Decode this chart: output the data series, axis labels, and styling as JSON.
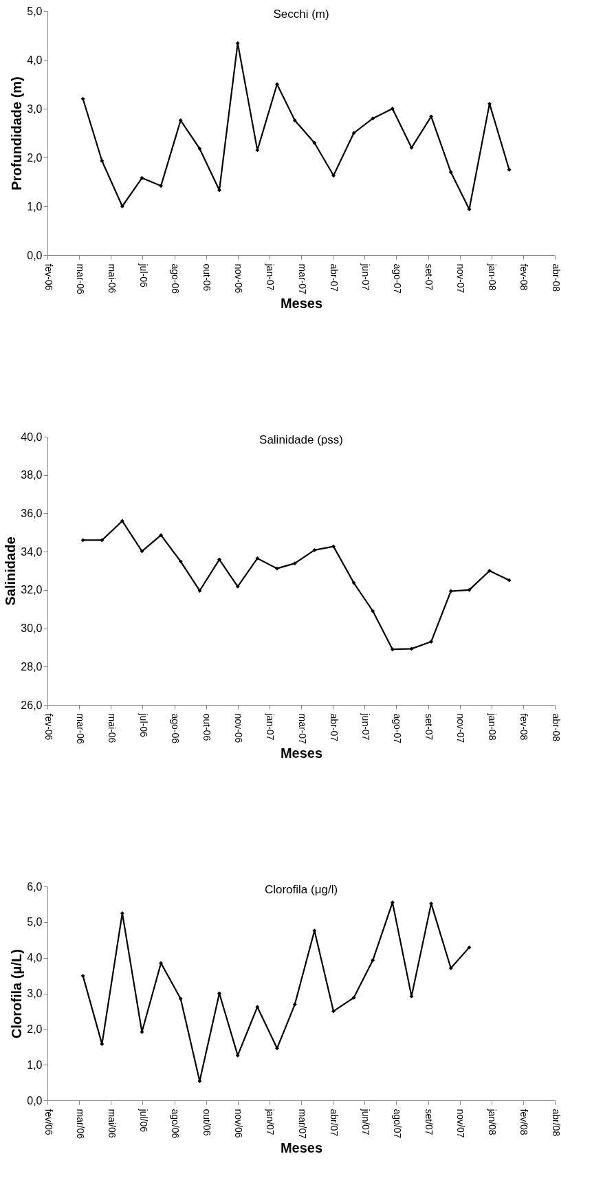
{
  "chart_data": [
    {
      "type": "line",
      "title": "Secchi (m)",
      "xlabel": "Meses",
      "ylabel": "Profundidade (m)",
      "marker": "diamond",
      "line_style": "solid",
      "grid": false,
      "x": [
        "2006-03-29",
        "2006-04-28",
        "2006-05-30",
        "2006-06-30",
        "2006-07-30",
        "2006-08-30",
        "2006-09-29",
        "2006-10-30",
        "2006-11-28",
        "2006-12-29",
        "2007-01-29",
        "2007-02-26",
        "2007-03-29",
        "2007-04-28",
        "2007-05-30",
        "2007-06-29",
        "2007-07-30",
        "2007-08-29",
        "2007-09-29",
        "2007-10-30",
        "2007-11-28",
        "2007-12-30",
        "2008-01-30"
      ],
      "series": [
        {
          "color": "#000000",
          "values": [
            3.2,
            1.93,
            1.0,
            1.58,
            1.42,
            2.76,
            2.18,
            1.33,
            4.34,
            2.15,
            3.5,
            2.76,
            2.3,
            1.63,
            2.5,
            2.8,
            3.0,
            2.2,
            2.84,
            1.7,
            0.94,
            3.1,
            1.75
          ]
        }
      ],
      "ylim": [
        0,
        5
      ],
      "yticks": [
        {
          "value": 0,
          "label": "0,0"
        },
        {
          "value": 1,
          "label": "1,0"
        },
        {
          "value": 2,
          "label": "2,0"
        },
        {
          "value": 3,
          "label": "3,0"
        },
        {
          "value": 4,
          "label": "4,0"
        },
        {
          "value": 5,
          "label": "5,0"
        }
      ],
      "xlim": [
        "2006-02-01",
        "2008-04-11"
      ],
      "xticks": [
        {
          "value": "2006-02-01",
          "label": "fev-06"
        },
        {
          "value": "2006-03-23",
          "label": "mar-06"
        },
        {
          "value": "2006-05-12",
          "label": "mai-06"
        },
        {
          "value": "2006-07-01",
          "label": "jul-06"
        },
        {
          "value": "2006-08-20",
          "label": "ago-06"
        },
        {
          "value": "2006-10-09",
          "label": "out-06"
        },
        {
          "value": "2006-11-28",
          "label": "nov-06"
        },
        {
          "value": "2007-01-17",
          "label": "jan-07"
        },
        {
          "value": "2007-03-08",
          "label": "mar-07"
        },
        {
          "value": "2007-04-27",
          "label": "abr-07"
        },
        {
          "value": "2007-06-16",
          "label": "jun-07"
        },
        {
          "value": "2007-08-05",
          "label": "ago-07"
        },
        {
          "value": "2007-09-24",
          "label": "set-07"
        },
        {
          "value": "2007-11-13",
          "label": "nov-07"
        },
        {
          "value": "2008-01-02",
          "label": "jan-08"
        },
        {
          "value": "2008-02-21",
          "label": "fev-08"
        },
        {
          "value": "2008-04-11",
          "label": "abr-08"
        }
      ]
    },
    {
      "type": "line",
      "title": "Salinidade (pss)",
      "xlabel": "Meses",
      "ylabel": "Salinidade",
      "marker": "diamond",
      "line_style": "solid",
      "grid": false,
      "x": [
        "2006-03-29",
        "2006-04-28",
        "2006-05-30",
        "2006-06-30",
        "2006-07-30",
        "2006-08-30",
        "2006-09-29",
        "2006-10-30",
        "2006-11-28",
        "2006-12-29",
        "2007-01-29",
        "2007-02-26",
        "2007-03-29",
        "2007-04-28",
        "2007-05-30",
        "2007-06-29",
        "2007-07-30",
        "2007-08-29",
        "2007-09-29",
        "2007-10-30",
        "2007-11-28",
        "2007-12-30",
        "2008-01-30"
      ],
      "series": [
        {
          "color": "#000000",
          "values": [
            34.6,
            34.6,
            35.6,
            34.02,
            34.86,
            33.49,
            31.96,
            33.59,
            32.18,
            33.65,
            33.12,
            33.39,
            34.08,
            34.27,
            32.37,
            30.9,
            28.9,
            28.93,
            29.3,
            31.94,
            32.0,
            33.0,
            32.51
          ]
        }
      ],
      "ylim": [
        26,
        40
      ],
      "yticks": [
        {
          "value": 26,
          "label": "26,0"
        },
        {
          "value": 28,
          "label": "28,0"
        },
        {
          "value": 30,
          "label": "30,0"
        },
        {
          "value": 32,
          "label": "32,0"
        },
        {
          "value": 34,
          "label": "34,0"
        },
        {
          "value": 36,
          "label": "36,0"
        },
        {
          "value": 38,
          "label": "38,0"
        },
        {
          "value": 40,
          "label": "40,0"
        }
      ],
      "xlim": [
        "2006-02-01",
        "2008-04-11"
      ],
      "xticks": [
        {
          "value": "2006-02-01",
          "label": "fev-06"
        },
        {
          "value": "2006-03-23",
          "label": "mar-06"
        },
        {
          "value": "2006-05-12",
          "label": "mai-06"
        },
        {
          "value": "2006-07-01",
          "label": "jul-06"
        },
        {
          "value": "2006-08-20",
          "label": "ago-06"
        },
        {
          "value": "2006-10-09",
          "label": "out-06"
        },
        {
          "value": "2006-11-28",
          "label": "nov-06"
        },
        {
          "value": "2007-01-17",
          "label": "jan-07"
        },
        {
          "value": "2007-03-08",
          "label": "mar-07"
        },
        {
          "value": "2007-04-27",
          "label": "abr-07"
        },
        {
          "value": "2007-06-16",
          "label": "jun-07"
        },
        {
          "value": "2007-08-05",
          "label": "ago-07"
        },
        {
          "value": "2007-09-24",
          "label": "set-07"
        },
        {
          "value": "2007-11-13",
          "label": "nov-07"
        },
        {
          "value": "2008-01-02",
          "label": "jan-08"
        },
        {
          "value": "2008-02-21",
          "label": "fev-08"
        },
        {
          "value": "2008-04-11",
          "label": "abr-08"
        }
      ]
    },
    {
      "type": "line",
      "title": "Clorofila (μg/l)",
      "xlabel": "Meses",
      "ylabel": "Clorofila (μ/L)",
      "marker": "diamond",
      "line_style": "solid",
      "grid": false,
      "x": [
        "2006-03-29",
        "2006-04-28",
        "2006-05-30",
        "2006-06-30",
        "2006-07-30",
        "2006-08-30",
        "2006-09-29",
        "2006-10-30",
        "2006-11-28",
        "2006-12-29",
        "2007-01-29",
        "2007-02-26",
        "2007-03-29",
        "2007-04-28",
        "2007-05-30",
        "2007-06-29",
        "2007-07-30",
        "2007-08-29",
        "2007-09-29",
        "2007-10-30",
        "2007-11-28"
      ],
      "series": [
        {
          "color": "#000000",
          "values": [
            3.49,
            1.58,
            5.25,
            1.92,
            3.85,
            2.85,
            0.54,
            3.0,
            1.26,
            2.62,
            1.46,
            2.69,
            4.76,
            2.5,
            2.88,
            3.93,
            5.55,
            2.92,
            5.52,
            3.71,
            4.29
          ]
        }
      ],
      "ylim": [
        0,
        6
      ],
      "yticks": [
        {
          "value": 0,
          "label": "0,0"
        },
        {
          "value": 1,
          "label": "1,0"
        },
        {
          "value": 2,
          "label": "2,0"
        },
        {
          "value": 3,
          "label": "3,0"
        },
        {
          "value": 4,
          "label": "4,0"
        },
        {
          "value": 5,
          "label": "5,0"
        },
        {
          "value": 6,
          "label": "6,0"
        }
      ],
      "xlim": [
        "2006-02-01",
        "2008-04-11"
      ],
      "xticks": [
        {
          "value": "2006-02-01",
          "label": "fev/06"
        },
        {
          "value": "2006-03-23",
          "label": "mar/06"
        },
        {
          "value": "2006-05-12",
          "label": "mai/06"
        },
        {
          "value": "2006-07-01",
          "label": "jul/06"
        },
        {
          "value": "2006-08-20",
          "label": "ago/06"
        },
        {
          "value": "2006-10-09",
          "label": "out/06"
        },
        {
          "value": "2006-11-28",
          "label": "nov/06"
        },
        {
          "value": "2007-01-17",
          "label": "jan/07"
        },
        {
          "value": "2007-03-08",
          "label": "mar/07"
        },
        {
          "value": "2007-04-27",
          "label": "abr/07"
        },
        {
          "value": "2007-06-16",
          "label": "jun/07"
        },
        {
          "value": "2007-08-05",
          "label": "ago/07"
        },
        {
          "value": "2007-09-24",
          "label": "set/07"
        },
        {
          "value": "2007-11-13",
          "label": "nov/07"
        },
        {
          "value": "2008-01-02",
          "label": "jan/08"
        },
        {
          "value": "2008-02-21",
          "label": "fev/08"
        },
        {
          "value": "2008-04-11",
          "label": "abr/08"
        }
      ]
    }
  ]
}
